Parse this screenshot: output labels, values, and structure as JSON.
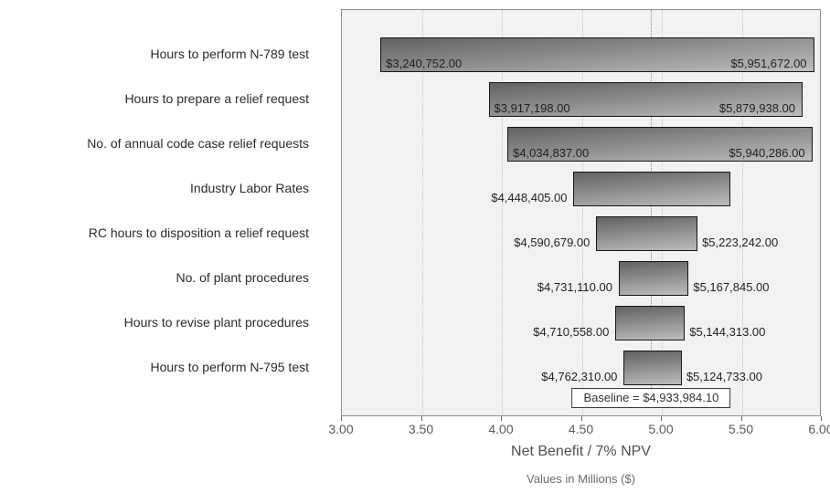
{
  "chart_data": {
    "type": "bar",
    "subtype": "tornado",
    "title": "",
    "xlabel": "Net Benefit / 7% NPV",
    "xlabel_sub": "Values in Millions ($)",
    "xlim": [
      3.0,
      6.0
    ],
    "xticks": [
      3.0,
      3.5,
      4.0,
      4.5,
      5.0,
      5.5,
      6.0
    ],
    "xtick_labels": [
      "3.00",
      "3.50",
      "4.00",
      "4.50",
      "5.00",
      "5.50",
      "6.00"
    ],
    "grid": "vertical-dotted",
    "baseline": {
      "value_millions": 4.9339841,
      "label": "Baseline = $4,933,984.10"
    },
    "bars": [
      {
        "category": "Hours to perform N-789 test",
        "low": 3.240752,
        "high": 5.951672,
        "low_label": "$3,240,752.00",
        "high_label": "$5,951,672.00"
      },
      {
        "category": "Hours to prepare a relief request",
        "low": 3.917198,
        "high": 5.879938,
        "low_label": "$3,917,198.00",
        "high_label": "$5,879,938.00"
      },
      {
        "category": "No. of annual code case relief requests",
        "low": 4.034837,
        "high": 5.940286,
        "low_label": "$4,034,837.00",
        "high_label": "$5,940,286.00"
      },
      {
        "category": "Industry Labor Rates",
        "low": 4.448405,
        "high": 5.43,
        "low_label": "$4,448,405.00",
        "high_label": ""
      },
      {
        "category": "RC hours to disposition a relief request",
        "low": 4.590679,
        "high": 5.223242,
        "low_label": "$4,590,679.00",
        "high_label": "$5,223,242.00"
      },
      {
        "category": "No. of plant procedures",
        "low": 4.73111,
        "high": 5.167845,
        "low_label": "$4,731,110.00",
        "high_label": "$5,167,845.00"
      },
      {
        "category": "Hours to revise plant procedures",
        "low": 4.710558,
        "high": 5.144313,
        "low_label": "$4,710,558.00",
        "high_label": "$5,144,313.00"
      },
      {
        "category": "Hours to perform N-795 test",
        "low": 4.76231,
        "high": 5.124733,
        "low_label": "$4,762,310.00",
        "high_label": "$5,124,733.00"
      }
    ]
  },
  "colors": {
    "plot_bg": "#f2f2f2",
    "bar_top": "#626262",
    "bar_bottom": "#bdbdbd",
    "bar_border": "#151515",
    "grid": "#c6c6c6",
    "baseline_line": "#8a8a8a",
    "text": "#2b2b2b"
  }
}
